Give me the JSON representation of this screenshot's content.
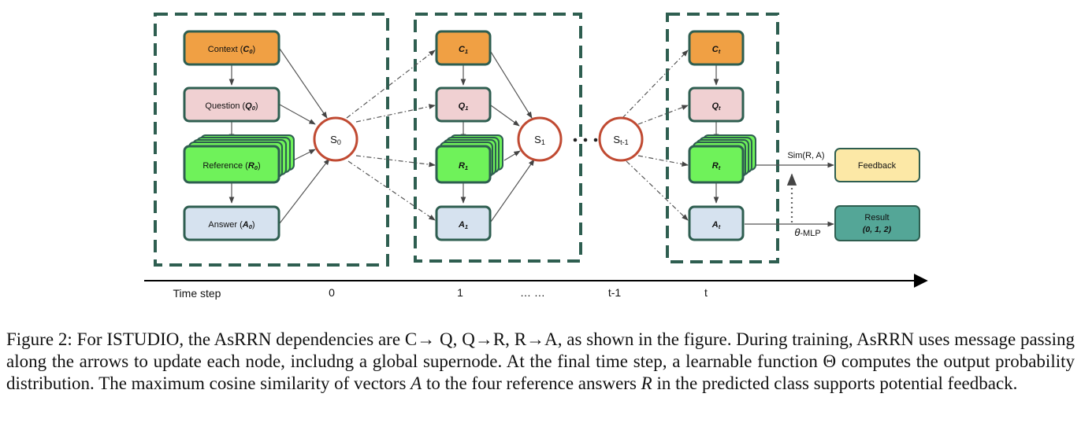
{
  "colors": {
    "context": "#f0a044",
    "question": "#f0d0d2",
    "reference": "#6ff25a",
    "answer": "#d6e2ef",
    "node_border": "#2e5e50",
    "frame": "#2e5e50",
    "state_ring": "#c04a32",
    "feedback": "#fce8a6",
    "result": "#54a697"
  },
  "frames": [
    {
      "step": "0",
      "state": {
        "base": "S",
        "sub": "0"
      },
      "nodes": [
        {
          "role": "context",
          "pre": "Context (",
          "var": "C",
          "sub": "0",
          "post": ")"
        },
        {
          "role": "question",
          "pre": "Question (",
          "var": "Q",
          "sub": "0",
          "post": ")"
        },
        {
          "role": "reference",
          "pre": "Reference (",
          "var": "R",
          "sub": "0",
          "post": ")"
        },
        {
          "role": "answer",
          "pre": "Answer (",
          "var": "A",
          "sub": "0",
          "post": ")"
        }
      ]
    },
    {
      "step": "1",
      "state": {
        "base": "S",
        "sub": "1"
      },
      "nodes": [
        {
          "role": "context",
          "pre": "",
          "var": "C",
          "sub": "1",
          "post": ""
        },
        {
          "role": "question",
          "pre": "",
          "var": "Q",
          "sub": "1",
          "post": ""
        },
        {
          "role": "reference",
          "pre": "",
          "var": "R",
          "sub": "1",
          "post": ""
        },
        {
          "role": "answer",
          "pre": "",
          "var": "A",
          "sub": "1",
          "post": ""
        }
      ]
    },
    {
      "step": "t",
      "nodes": [
        {
          "role": "context",
          "pre": "",
          "var": "C",
          "sub": "t",
          "post": ""
        },
        {
          "role": "question",
          "pre": "",
          "var": "Q",
          "sub": "t",
          "post": ""
        },
        {
          "role": "reference",
          "pre": "",
          "var": "R",
          "sub": "t",
          "post": ""
        },
        {
          "role": "answer",
          "pre": "",
          "var": "A",
          "sub": "t",
          "post": ""
        }
      ]
    }
  ],
  "prev_state": {
    "base": "S",
    "sub": "t-1"
  },
  "sim_label": "Sim(R, A)",
  "mlp_label": {
    "theta": "θ",
    "rest": "-MLP"
  },
  "feedback_label": "Feedback",
  "result_label": "Result",
  "result_classes": "(0, 1, 2)",
  "timeline": {
    "label": "Time step",
    "ticks": [
      "0",
      "1",
      "… …",
      "t-1",
      "t"
    ]
  },
  "caption": {
    "figure_label": "Figure 2:",
    "part1": "For ISTUDIO, the AsRRN dependencies are C→ Q, Q→R, R→A, as shown in the figure. During training, AsRRN uses message passing along the arrows to update each node, includng a global supernode. At the final time step, a learnable function Θ computes the output probability distribution. The maximum cosine similarity of vectors ",
    "var_a": "A",
    "part2": " to the four reference answers ",
    "var_r": "R",
    "part3": " in the predicted class supports potential feedback."
  }
}
